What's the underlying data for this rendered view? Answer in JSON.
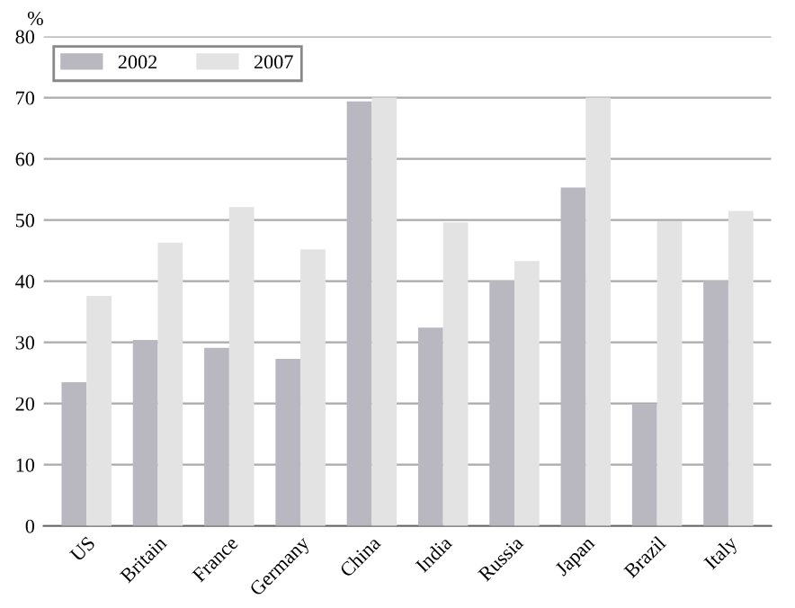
{
  "chart_data": {
    "type": "bar",
    "ylabel": "%",
    "categories": [
      "US",
      "Britain",
      "France",
      "Germany",
      "China",
      "India",
      "Russia",
      "Japan",
      "Brazil",
      "Italy"
    ],
    "series": [
      {
        "name": "2002",
        "color": "#b9b8c0",
        "values": [
          23.5,
          30.4,
          29.1,
          27.3,
          69.4,
          32.4,
          40.1,
          55.3,
          19.9,
          40.1
        ]
      },
      {
        "name": "2007",
        "color": "#e3e3e3",
        "values": [
          37.6,
          46.3,
          52.1,
          45.2,
          70,
          49.6,
          43.3,
          70,
          49.8,
          51.5
        ]
      }
    ],
    "ylim": [
      0,
      80
    ],
    "yticks": [
      0,
      10,
      20,
      30,
      40,
      50,
      60,
      70,
      80
    ],
    "grid": "y",
    "legend": "top left"
  }
}
